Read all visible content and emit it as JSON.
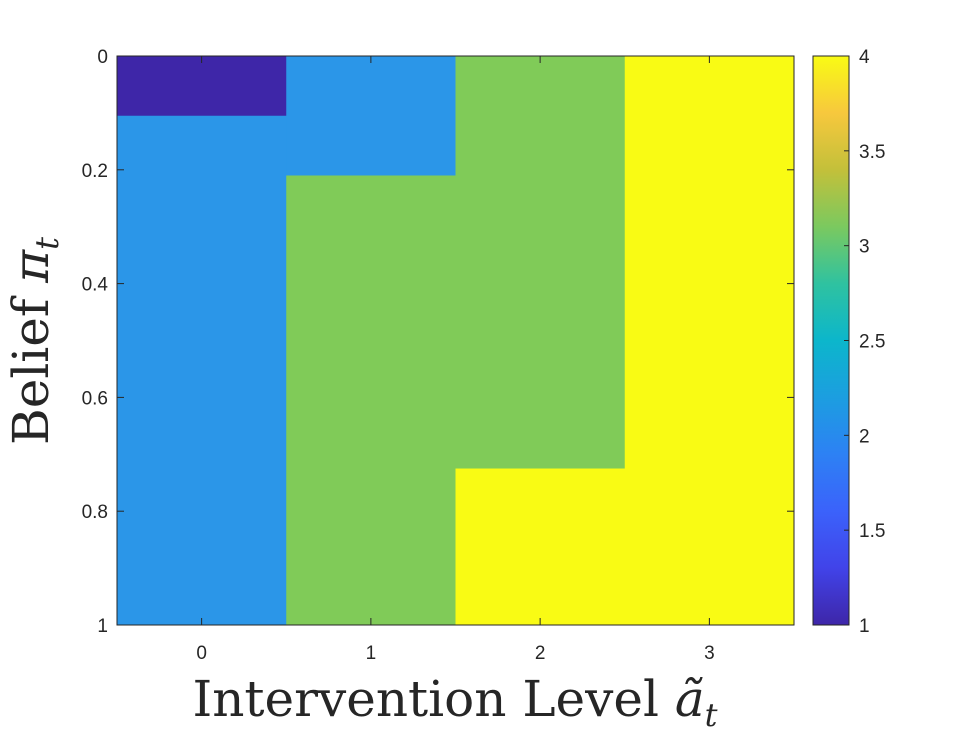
{
  "chart_data": {
    "type": "heatmap",
    "xlabel_text": "Intervention Level ",
    "xlabel_math": "ã",
    "xlabel_sub": "t",
    "ylabel_text": "Belief ",
    "ylabel_math": "π",
    "ylabel_sub": "t",
    "x_ticks": [
      "0",
      "1",
      "2",
      "3"
    ],
    "y_ticks": [
      "0",
      "0.2",
      "0.4",
      "0.6",
      "0.8",
      "1"
    ],
    "y_range": [
      0,
      1
    ],
    "x_categories": [
      0,
      1,
      2,
      3
    ],
    "y_direction": "reversed",
    "colorbar_ticks": [
      "4",
      "3.5",
      "3",
      "2.5",
      "2",
      "1.5",
      "1"
    ],
    "colorbar_range": [
      1,
      4
    ],
    "colormap": "parula",
    "columns": [
      {
        "x": 0,
        "segments": [
          {
            "y_from": 0,
            "y_to": 0.105,
            "value": 1
          },
          {
            "y_from": 0.105,
            "y_to": 1,
            "value": 2
          }
        ]
      },
      {
        "x": 1,
        "segments": [
          {
            "y_from": 0,
            "y_to": 0.21,
            "value": 2
          },
          {
            "y_from": 0.21,
            "y_to": 1,
            "value": 3
          }
        ]
      },
      {
        "x": 2,
        "segments": [
          {
            "y_from": 0,
            "y_to": 0.725,
            "value": 3
          },
          {
            "y_from": 0.725,
            "y_to": 1,
            "value": 4
          }
        ]
      },
      {
        "x": 3,
        "segments": [
          {
            "y_from": 0,
            "y_to": 1,
            "value": 4
          }
        ]
      }
    ],
    "colors": {
      "1": "#3e26a8",
      "2": "#2b96e8",
      "3": "#80cb58",
      "4": "#f9fb14"
    }
  }
}
